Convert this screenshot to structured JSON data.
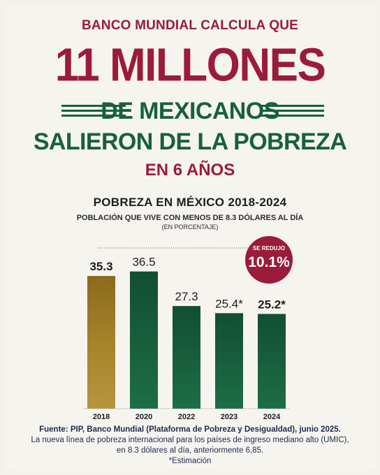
{
  "header": {
    "line1": "BANCO MUNDIAL CALCULA QUE",
    "line2": "11 MILLONES",
    "line3": "DE MEXICANOS",
    "line4": "SALIERON DE LA POBREZA",
    "line5": "EN 6 AÑOS"
  },
  "badge": {
    "label": "SE REDUJO",
    "value": "10.1%"
  },
  "footer": {
    "source": "Fuente: PIP, Banco Mundial (Plataforma de Pobreza y Desigualdad), junio 2025.",
    "note1": "La nueva línea de pobreza internacional para los países de ingreso mediano alto (UMIC),",
    "note2": "en 8.3 dólares al día, anteriormente 6,85.",
    "note3": "*Estimación"
  },
  "colors": {
    "maroon": "#9b1b3a",
    "green": "#17603e",
    "gold": "#a6822a"
  },
  "chart_data": {
    "type": "bar",
    "title": "POBREZA EN MÉXICO 2018-2024",
    "subtitle": "POBLACIÓN QUE VIVE CON MENOS DE 8.3 DÓLARES AL DÍA",
    "unit_note": "(EN PORCENTAJE)",
    "categories": [
      "2018",
      "2020",
      "2022",
      "2023",
      "2024"
    ],
    "values": [
      35.3,
      36.5,
      27.3,
      25.4,
      25.2
    ],
    "value_labels": [
      "35.3",
      "36.5",
      "27.3",
      "25.4*",
      "25.2*"
    ],
    "ylim": [
      0,
      38
    ],
    "grid": false
  }
}
